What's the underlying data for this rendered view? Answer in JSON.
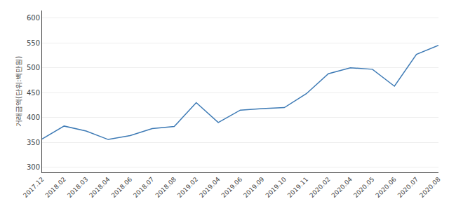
{
  "chart_data": {
    "type": "line",
    "ylabel": "거래금액(단위:백만원)",
    "categories": [
      "2017.12",
      "2018.02",
      "2018.03",
      "2018.04",
      "2018.06",
      "2018.07",
      "2018.08",
      "2019.02",
      "2019.04",
      "2019.06",
      "2019.09",
      "2019.10",
      "2019.11",
      "2020.02",
      "2020.04",
      "2020.05",
      "2020.06",
      "2020.07",
      "2020.08"
    ],
    "values": [
      357,
      383,
      373,
      356,
      364,
      378,
      382,
      430,
      390,
      415,
      418,
      420,
      448,
      488,
      500,
      497,
      463,
      527,
      545
    ],
    "color": "#3d7ab5",
    "ylim": [
      290,
      615
    ],
    "yticks": [
      300,
      350,
      400,
      450,
      500,
      550,
      600
    ],
    "grid": true
  }
}
